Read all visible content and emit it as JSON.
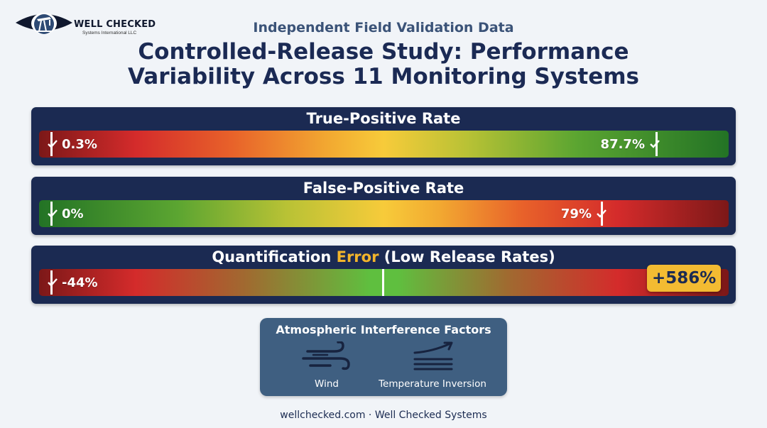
{
  "brand": {
    "name": "WELL CHECKED",
    "sub": "Systems International LLC"
  },
  "subtitle": "Independent Field Validation Data",
  "title_line1": "Controlled-Release Study: Performance",
  "title_line2": "Variability Across 11 Monitoring Systems",
  "chart_data": {
    "type": "range-gauge",
    "metrics": [
      {
        "name": "True-Positive Rate",
        "min_label": "0.3%",
        "max_label": "87.7%",
        "min": 0.3,
        "max": 87.7,
        "gradient": "red-to-green"
      },
      {
        "name": "False-Positive Rate",
        "min_label": "0%",
        "max_label": "79%",
        "min": 0,
        "max": 79,
        "gradient": "green-to-red"
      },
      {
        "name_pre": "Quantification ",
        "name_accent": "Error",
        "name_post": " (Low Release Rates)",
        "min_label": "-44%",
        "max_label": "+586%",
        "min": -44,
        "max": 586,
        "gradient": "red-green-red"
      }
    ],
    "colors": {
      "panel": "#1b2a52",
      "accent": "#f3b52b",
      "good": "#237325",
      "bad": "#7c1818"
    }
  },
  "factors": {
    "title": "Atmospheric Interference Factors",
    "items": [
      {
        "label": "Wind",
        "icon": "wind-icon"
      },
      {
        "label": "Temperature Inversion",
        "icon": "temperature-inversion-icon"
      }
    ]
  },
  "footer": "wellchecked.com · Well Checked Systems"
}
